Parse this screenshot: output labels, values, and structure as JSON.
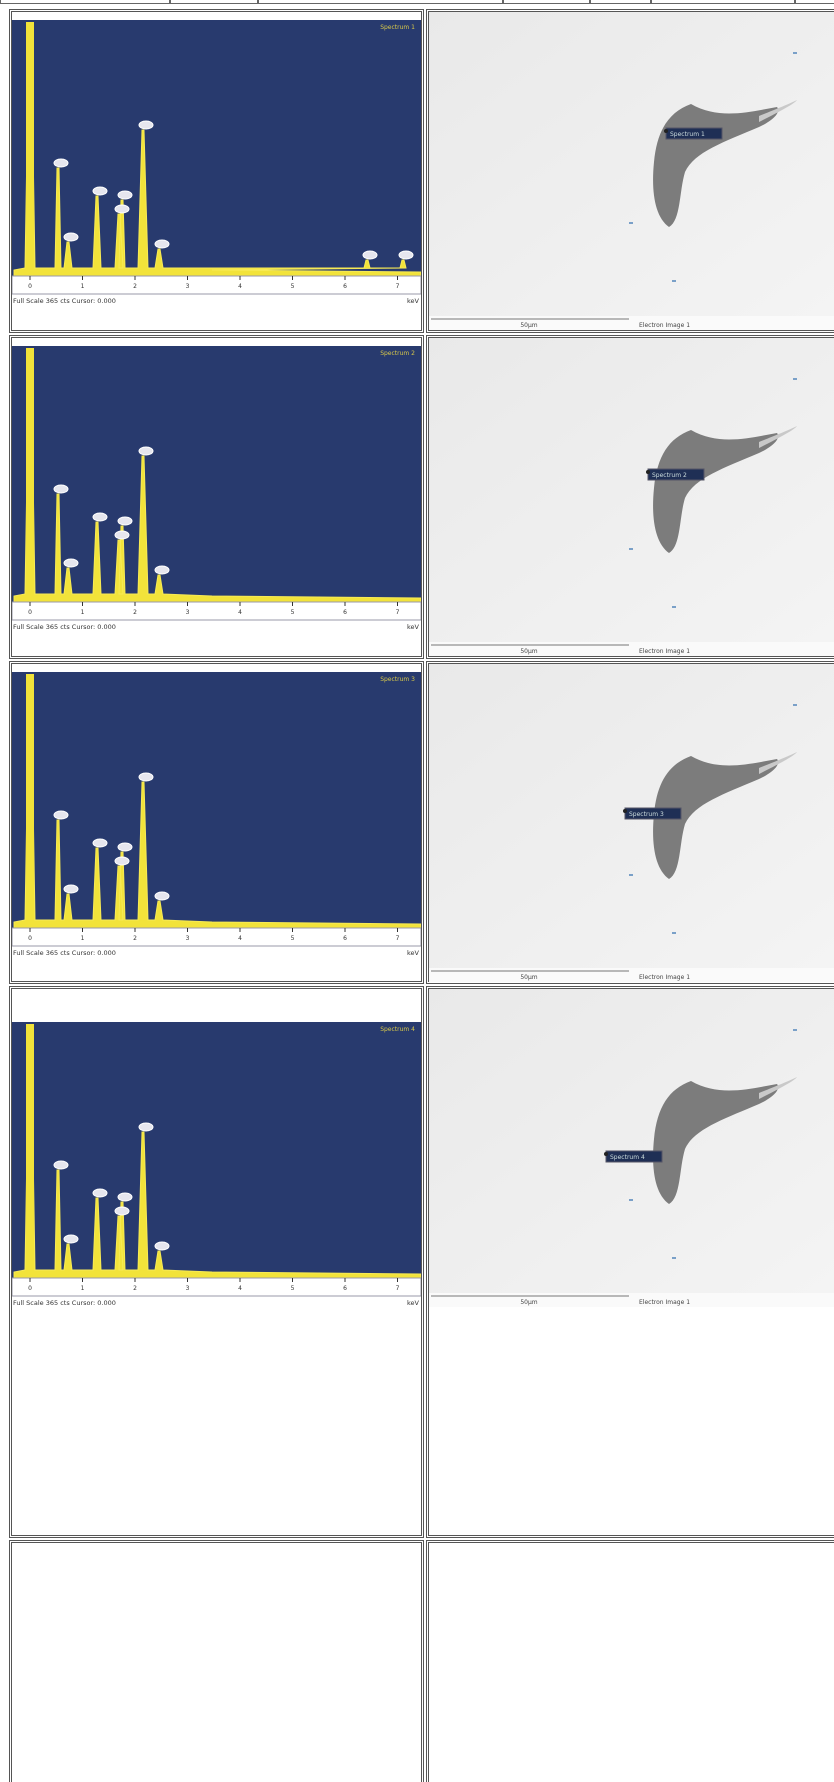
{
  "rows": [
    {
      "spectrum": {
        "title": "Spectrum 1",
        "ticks": [
          "0",
          "1",
          "2",
          "3",
          "4",
          "5",
          "6",
          "7"
        ],
        "footer": "Full Scale 365 cts Cursor: 0.000",
        "unit": "keV"
      },
      "image": {
        "marker": "Spectrum 1",
        "scale": "50µm",
        "caption": "Electron Image 1"
      }
    },
    {
      "spectrum": {
        "title": "Spectrum 2",
        "ticks": [
          "0",
          "1",
          "2",
          "3",
          "4",
          "5",
          "6",
          "7"
        ],
        "footer": "Full Scale 365 cts Cursor: 0.000",
        "unit": "keV"
      },
      "image": {
        "marker": "Spectrum 2",
        "scale": "50µm",
        "caption": "Electron Image 1"
      }
    },
    {
      "spectrum": {
        "title": "Spectrum 3",
        "ticks": [
          "0",
          "1",
          "2",
          "3",
          "4",
          "5",
          "6",
          "7"
        ],
        "footer": "Full Scale 365 cts Cursor: 0.000",
        "unit": "keV"
      },
      "image": {
        "marker": "Spectrum 3",
        "scale": "50µm",
        "caption": "Electron Image 1"
      }
    },
    {
      "spectrum": {
        "title": "Spectrum 4",
        "ticks": [
          "0",
          "1",
          "2",
          "3",
          "4",
          "5",
          "6",
          "7"
        ],
        "footer": "Full Scale 365 cts Cursor: 0.000",
        "unit": "keV"
      },
      "image": {
        "marker": "Spectrum 4",
        "scale": "50µm",
        "caption": "Electron Image 1"
      }
    }
  ]
}
